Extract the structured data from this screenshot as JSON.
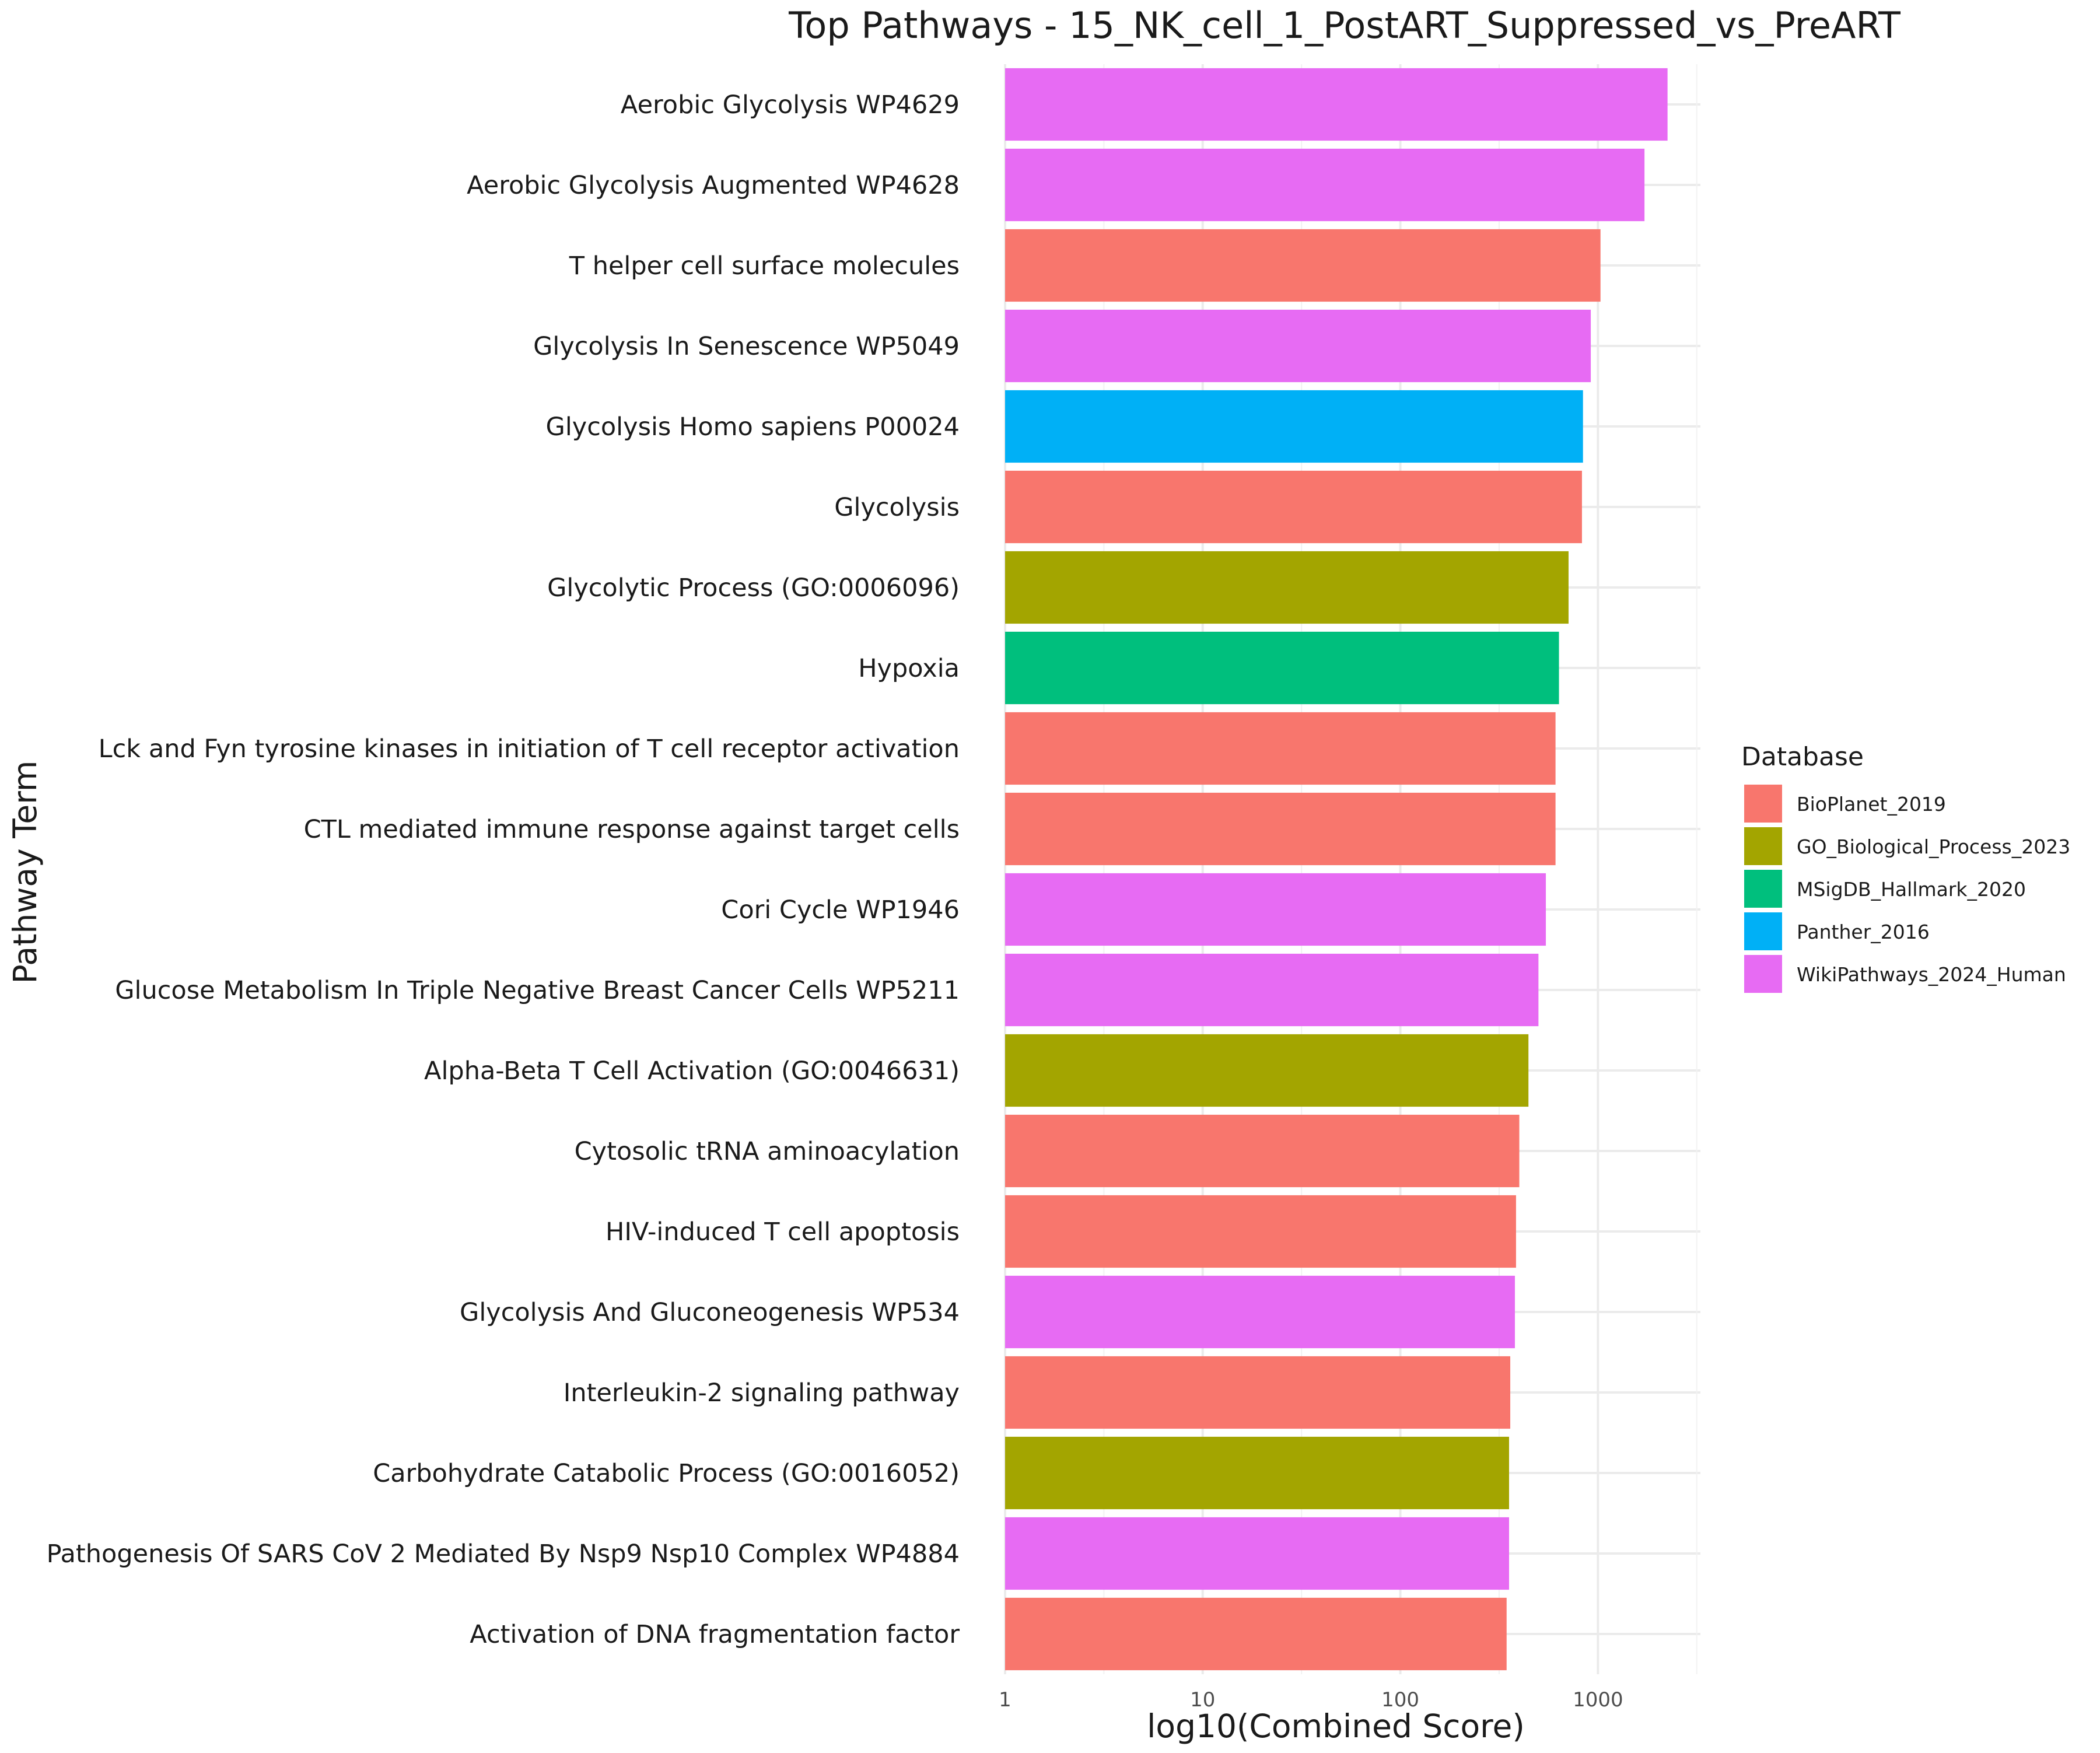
{
  "chart_data": {
    "type": "bar",
    "orientation": "horizontal",
    "title": "Top Pathways - 15_NK_cell_1_PostART_Suppressed_vs_PreART",
    "xlabel": "log10(Combined Score)",
    "ylabel": "Pathway Term",
    "x_scale": "log10",
    "xlim": [
      1,
      3300
    ],
    "x_ticks": [
      1,
      10,
      100,
      1000
    ],
    "x_tick_labels": [
      "1",
      "10",
      "100",
      "1000"
    ],
    "grid": true,
    "legend": {
      "title": "Database",
      "position": "right",
      "entries": [
        {
          "name": "BioPlanet_2019",
          "color": "#F8766D"
        },
        {
          "name": "GO_Biological_Process_2023",
          "color": "#A3A500"
        },
        {
          "name": "MSigDB_Hallmark_2020",
          "color": "#00BF7D"
        },
        {
          "name": "Panther_2016",
          "color": "#00B0F6"
        },
        {
          "name": "WikiPathways_2024_Human",
          "color": "#E76BF3"
        }
      ]
    },
    "bars": [
      {
        "label": "Aerobic Glycolysis WP4629",
        "value": 2250,
        "database": "WikiPathways_2024_Human"
      },
      {
        "label": "Aerobic Glycolysis Augmented WP4628",
        "value": 1720,
        "database": "WikiPathways_2024_Human"
      },
      {
        "label": "T helper cell surface molecules",
        "value": 1030,
        "database": "BioPlanet_2019"
      },
      {
        "label": "Glycolysis In Senescence WP5049",
        "value": 920,
        "database": "WikiPathways_2024_Human"
      },
      {
        "label": "Glycolysis Homo sapiens P00024",
        "value": 840,
        "database": "Panther_2016"
      },
      {
        "label": "Glycolysis",
        "value": 830,
        "database": "BioPlanet_2019"
      },
      {
        "label": "Glycolytic Process (GO:0006096)",
        "value": 710,
        "database": "GO_Biological_Process_2023"
      },
      {
        "label": "Hypoxia",
        "value": 635,
        "database": "MSigDB_Hallmark_2020"
      },
      {
        "label": "Lck and Fyn tyrosine kinases in initiation of T cell receptor activation",
        "value": 610,
        "database": "BioPlanet_2019"
      },
      {
        "label": "CTL mediated immune response against target cells",
        "value": 610,
        "database": "BioPlanet_2019"
      },
      {
        "label": "Cori Cycle WP1946",
        "value": 545,
        "database": "WikiPathways_2024_Human"
      },
      {
        "label": "Glucose Metabolism In Triple Negative Breast Cancer Cells WP5211",
        "value": 500,
        "database": "WikiPathways_2024_Human"
      },
      {
        "label": "Alpha-Beta T Cell Activation (GO:0046631)",
        "value": 445,
        "database": "GO_Biological_Process_2023"
      },
      {
        "label": "Cytosolic tRNA aminoacylation",
        "value": 400,
        "database": "BioPlanet_2019"
      },
      {
        "label": "HIV-induced T cell apoptosis",
        "value": 385,
        "database": "BioPlanet_2019"
      },
      {
        "label": "Glycolysis And Gluconeogenesis WP534",
        "value": 380,
        "database": "WikiPathways_2024_Human"
      },
      {
        "label": "Interleukin-2 signaling pathway",
        "value": 360,
        "database": "BioPlanet_2019"
      },
      {
        "label": "Carbohydrate Catabolic Process (GO:0016052)",
        "value": 355,
        "database": "GO_Biological_Process_2023"
      },
      {
        "label": "Pathogenesis Of SARS CoV 2 Mediated By Nsp9 Nsp10 Complex WP4884",
        "value": 355,
        "database": "WikiPathways_2024_Human"
      },
      {
        "label": "Activation of DNA fragmentation factor",
        "value": 345,
        "database": "BioPlanet_2019"
      }
    ]
  }
}
